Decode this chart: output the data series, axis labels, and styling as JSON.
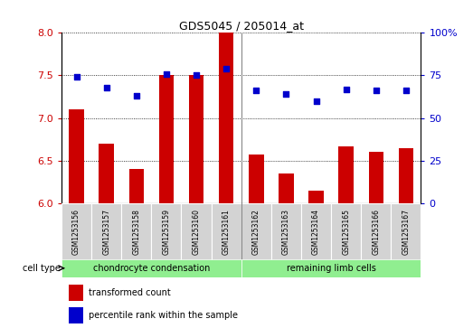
{
  "title": "GDS5045 / 205014_at",
  "samples": [
    "GSM1253156",
    "GSM1253157",
    "GSM1253158",
    "GSM1253159",
    "GSM1253160",
    "GSM1253161",
    "GSM1253162",
    "GSM1253163",
    "GSM1253164",
    "GSM1253165",
    "GSM1253166",
    "GSM1253167"
  ],
  "transformed_count": [
    7.1,
    6.7,
    6.4,
    7.5,
    7.5,
    8.0,
    6.57,
    6.35,
    6.15,
    6.67,
    6.6,
    6.65
  ],
  "percentile_rank": [
    74,
    68,
    63,
    76,
    75,
    79,
    66,
    64,
    60,
    67,
    66,
    66
  ],
  "ylim_left": [
    6,
    8
  ],
  "ylim_right": [
    0,
    100
  ],
  "yticks_left": [
    6,
    6.5,
    7,
    7.5,
    8
  ],
  "yticks_right": [
    0,
    25,
    50,
    75,
    100
  ],
  "bar_color": "#cc0000",
  "dot_color": "#0000cc",
  "group1_label": "chondrocyte condensation",
  "group2_label": "remaining limb cells",
  "group1_count": 6,
  "group2_count": 6,
  "group1_color": "#90ee90",
  "group2_color": "#90ee90",
  "cell_type_label": "cell type",
  "legend_bar_label": "transformed count",
  "legend_dot_label": "percentile rank within the sample",
  "background_color": "#ffffff",
  "plot_bg": "#ffffff",
  "grid_color": "#000000",
  "separator_color": "#888888"
}
